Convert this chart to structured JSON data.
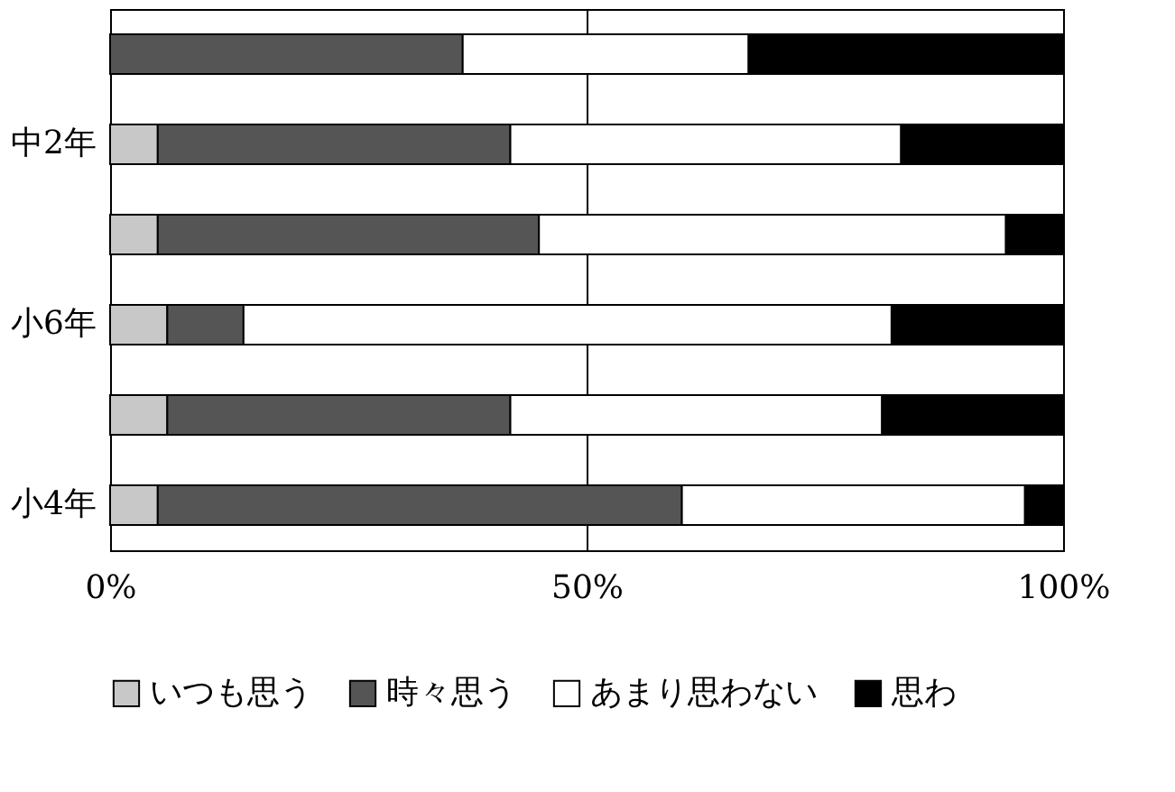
{
  "chart_data": {
    "type": "bar",
    "orientation": "horizontal",
    "stacked": true,
    "categories": [
      null,
      "中2年",
      null,
      "小6年",
      null,
      "小4年"
    ],
    "series": [
      {
        "name": "いつも思う",
        "color": "#c8c8c8",
        "values": [
          0,
          5,
          5,
          6,
          6,
          5
        ]
      },
      {
        "name": "時々思う",
        "color": "#555555",
        "values": [
          37,
          37,
          40,
          8,
          36,
          55
        ]
      },
      {
        "name": "あまり思わない",
        "color": "#ffffff",
        "values": [
          30,
          41,
          49,
          68,
          39,
          36
        ]
      },
      {
        "name": "思わ",
        "color": "#000000",
        "values": [
          33,
          17,
          6,
          18,
          19,
          4
        ]
      }
    ],
    "xlim": [
      0,
      100
    ],
    "xticks": [
      {
        "value": 0,
        "label": "0%"
      },
      {
        "value": 50,
        "label": "50%"
      },
      {
        "value": 100,
        "label": "100%"
      }
    ],
    "grid": "x",
    "legend": "bottom"
  }
}
